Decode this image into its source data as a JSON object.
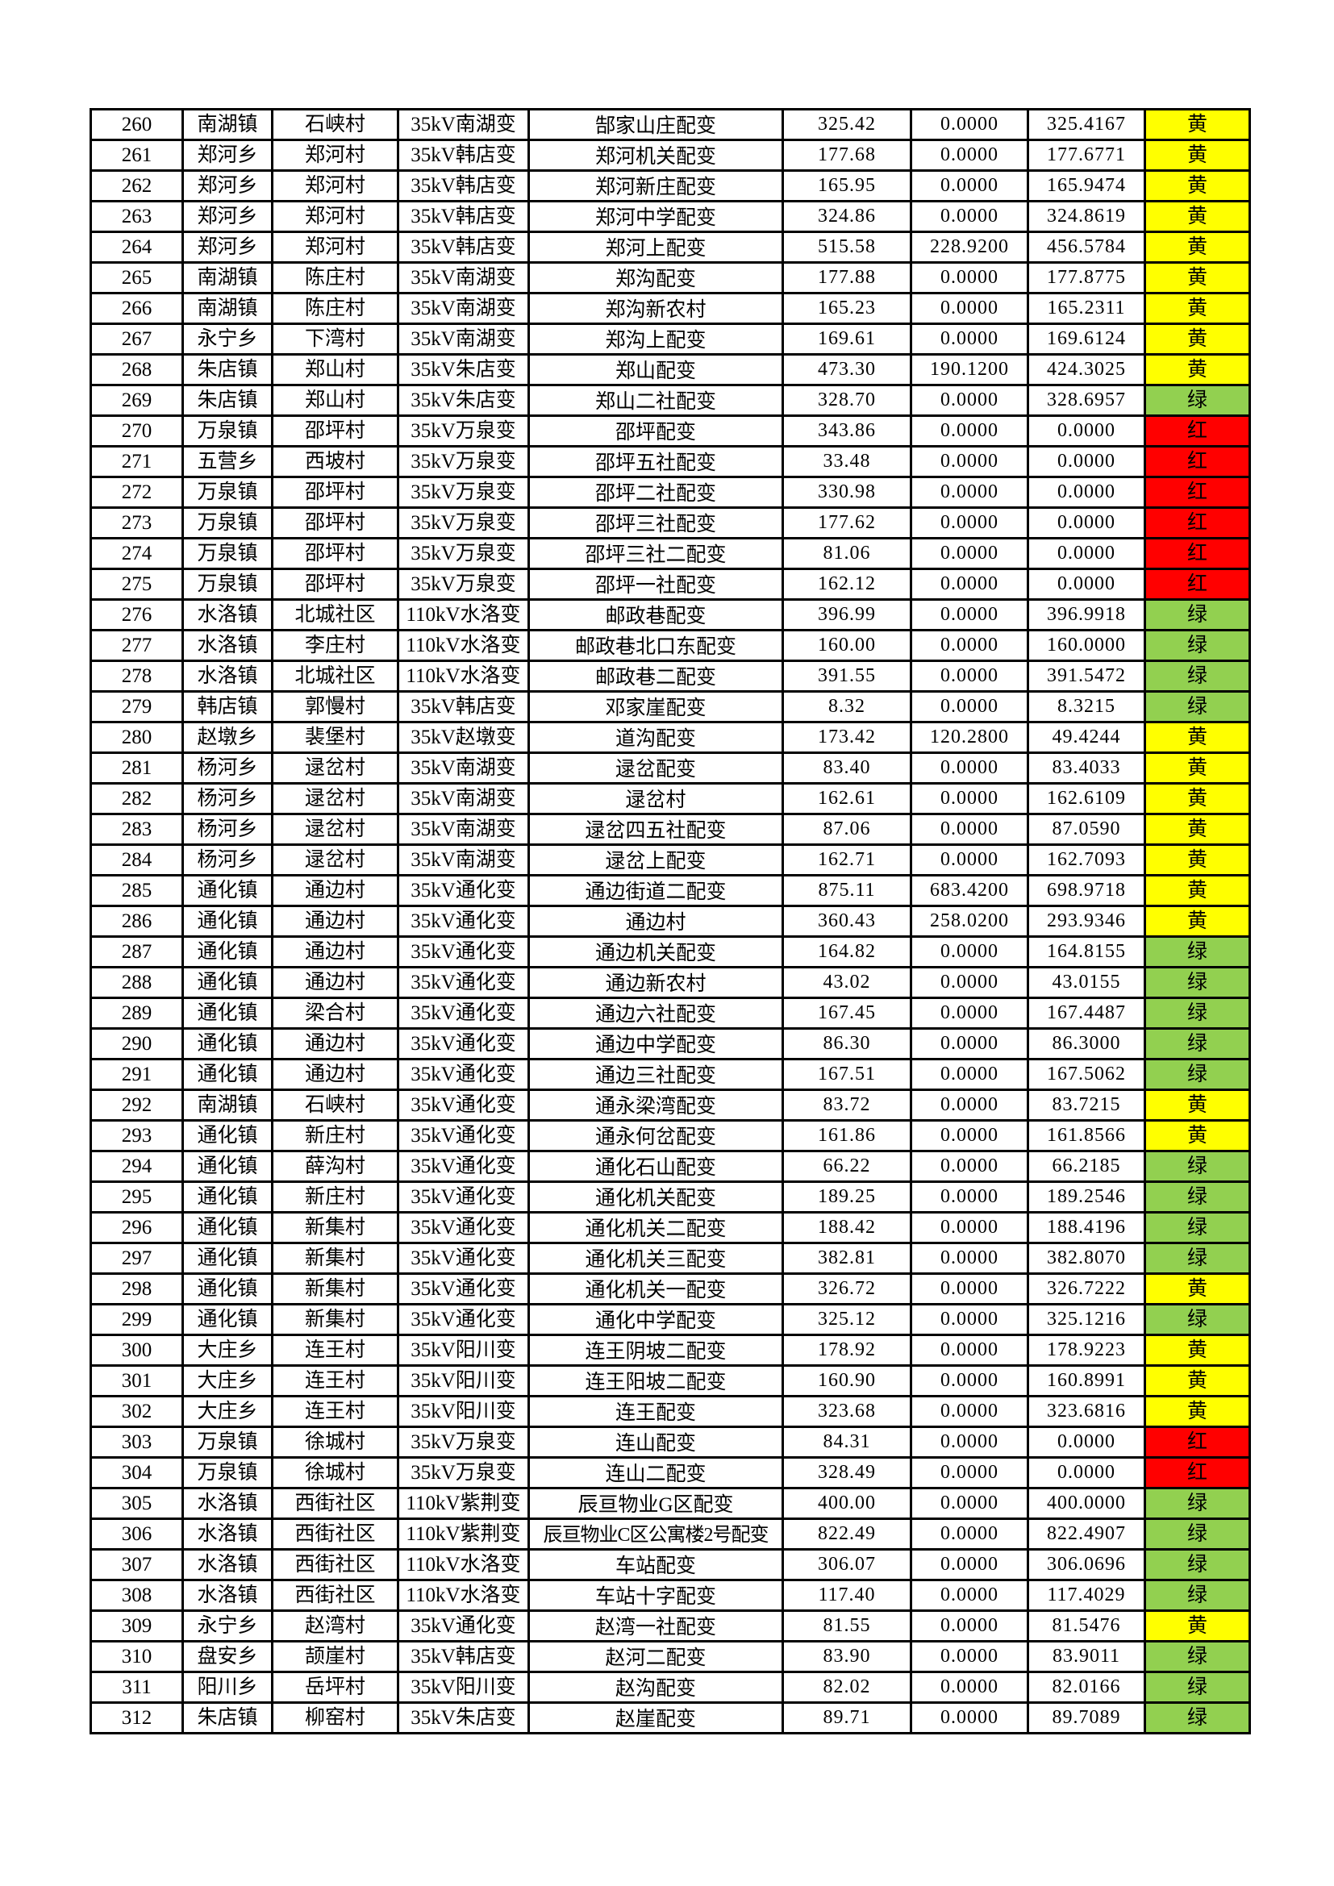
{
  "colors": {
    "黄": "#ffff00",
    "绿": "#92d050",
    "红": "#ff0000"
  },
  "rows": [
    [
      "260",
      "南湖镇",
      "石峡村",
      "35kV南湖变",
      "郜家山庄配变",
      "325.42",
      "0.0000",
      "325.4167",
      "黄"
    ],
    [
      "261",
      "郑河乡",
      "郑河村",
      "35kV韩店变",
      "郑河机关配变",
      "177.68",
      "0.0000",
      "177.6771",
      "黄"
    ],
    [
      "262",
      "郑河乡",
      "郑河村",
      "35kV韩店变",
      "郑河新庄配变",
      "165.95",
      "0.0000",
      "165.9474",
      "黄"
    ],
    [
      "263",
      "郑河乡",
      "郑河村",
      "35kV韩店变",
      "郑河中学配变",
      "324.86",
      "0.0000",
      "324.8619",
      "黄"
    ],
    [
      "264",
      "郑河乡",
      "郑河村",
      "35kV韩店变",
      "郑河上配变",
      "515.58",
      "228.9200",
      "456.5784",
      "黄"
    ],
    [
      "265",
      "南湖镇",
      "陈庄村",
      "35kV南湖变",
      "郑沟配变",
      "177.88",
      "0.0000",
      "177.8775",
      "黄"
    ],
    [
      "266",
      "南湖镇",
      "陈庄村",
      "35kV南湖变",
      "郑沟新农村",
      "165.23",
      "0.0000",
      "165.2311",
      "黄"
    ],
    [
      "267",
      "永宁乡",
      "下湾村",
      "35kV南湖变",
      "郑沟上配变",
      "169.61",
      "0.0000",
      "169.6124",
      "黄"
    ],
    [
      "268",
      "朱店镇",
      "郑山村",
      "35kV朱店变",
      "郑山配变",
      "473.30",
      "190.1200",
      "424.3025",
      "黄"
    ],
    [
      "269",
      "朱店镇",
      "郑山村",
      "35kV朱店变",
      "郑山二社配变",
      "328.70",
      "0.0000",
      "328.6957",
      "绿"
    ],
    [
      "270",
      "万泉镇",
      "邵坪村",
      "35kV万泉变",
      "邵坪配变",
      "343.86",
      "0.0000",
      "0.0000",
      "红"
    ],
    [
      "271",
      "五营乡",
      "西坡村",
      "35kV万泉变",
      "邵坪五社配变",
      "33.48",
      "0.0000",
      "0.0000",
      "红"
    ],
    [
      "272",
      "万泉镇",
      "邵坪村",
      "35kV万泉变",
      "邵坪二社配变",
      "330.98",
      "0.0000",
      "0.0000",
      "红"
    ],
    [
      "273",
      "万泉镇",
      "邵坪村",
      "35kV万泉变",
      "邵坪三社配变",
      "177.62",
      "0.0000",
      "0.0000",
      "红"
    ],
    [
      "274",
      "万泉镇",
      "邵坪村",
      "35kV万泉变",
      "邵坪三社二配变",
      "81.06",
      "0.0000",
      "0.0000",
      "红"
    ],
    [
      "275",
      "万泉镇",
      "邵坪村",
      "35kV万泉变",
      "邵坪一社配变",
      "162.12",
      "0.0000",
      "0.0000",
      "红"
    ],
    [
      "276",
      "水洛镇",
      "北城社区",
      "110kV水洛变",
      "邮政巷配变",
      "396.99",
      "0.0000",
      "396.9918",
      "绿"
    ],
    [
      "277",
      "水洛镇",
      "李庄村",
      "110kV水洛变",
      "邮政巷北口东配变",
      "160.00",
      "0.0000",
      "160.0000",
      "绿"
    ],
    [
      "278",
      "水洛镇",
      "北城社区",
      "110kV水洛变",
      "邮政巷二配变",
      "391.55",
      "0.0000",
      "391.5472",
      "绿"
    ],
    [
      "279",
      "韩店镇",
      "郭慢村",
      "35kV韩店变",
      "邓家崖配变",
      "8.32",
      "0.0000",
      "8.3215",
      "绿"
    ],
    [
      "280",
      "赵墩乡",
      "裴堡村",
      "35kV赵墩变",
      "道沟配变",
      "173.42",
      "120.2800",
      "49.4244",
      "黄"
    ],
    [
      "281",
      "杨河乡",
      "逯岔村",
      "35kV南湖变",
      "逯岔配变",
      "83.40",
      "0.0000",
      "83.4033",
      "黄"
    ],
    [
      "282",
      "杨河乡",
      "逯岔村",
      "35kV南湖变",
      "逯岔村",
      "162.61",
      "0.0000",
      "162.6109",
      "黄"
    ],
    [
      "283",
      "杨河乡",
      "逯岔村",
      "35kV南湖变",
      "逯岔四五社配变",
      "87.06",
      "0.0000",
      "87.0590",
      "黄"
    ],
    [
      "284",
      "杨河乡",
      "逯岔村",
      "35kV南湖变",
      "逯岔上配变",
      "162.71",
      "0.0000",
      "162.7093",
      "黄"
    ],
    [
      "285",
      "通化镇",
      "通边村",
      "35kV通化变",
      "通边街道二配变",
      "875.11",
      "683.4200",
      "698.9718",
      "黄"
    ],
    [
      "286",
      "通化镇",
      "通边村",
      "35kV通化变",
      "通边村",
      "360.43",
      "258.0200",
      "293.9346",
      "黄"
    ],
    [
      "287",
      "通化镇",
      "通边村",
      "35kV通化变",
      "通边机关配变",
      "164.82",
      "0.0000",
      "164.8155",
      "绿"
    ],
    [
      "288",
      "通化镇",
      "通边村",
      "35kV通化变",
      "通边新农村",
      "43.02",
      "0.0000",
      "43.0155",
      "绿"
    ],
    [
      "289",
      "通化镇",
      "梁合村",
      "35kV通化变",
      "通边六社配变",
      "167.45",
      "0.0000",
      "167.4487",
      "绿"
    ],
    [
      "290",
      "通化镇",
      "通边村",
      "35kV通化变",
      "通边中学配变",
      "86.30",
      "0.0000",
      "86.3000",
      "绿"
    ],
    [
      "291",
      "通化镇",
      "通边村",
      "35kV通化变",
      "通边三社配变",
      "167.51",
      "0.0000",
      "167.5062",
      "绿"
    ],
    [
      "292",
      "南湖镇",
      "石峡村",
      "35kV通化变",
      "通永梁湾配变",
      "83.72",
      "0.0000",
      "83.7215",
      "黄"
    ],
    [
      "293",
      "通化镇",
      "新庄村",
      "35kV通化变",
      "通永何岔配变",
      "161.86",
      "0.0000",
      "161.8566",
      "黄"
    ],
    [
      "294",
      "通化镇",
      "薛沟村",
      "35kV通化变",
      "通化石山配变",
      "66.22",
      "0.0000",
      "66.2185",
      "绿"
    ],
    [
      "295",
      "通化镇",
      "新庄村",
      "35kV通化变",
      "通化机关配变",
      "189.25",
      "0.0000",
      "189.2546",
      "绿"
    ],
    [
      "296",
      "通化镇",
      "新集村",
      "35kV通化变",
      "通化机关二配变",
      "188.42",
      "0.0000",
      "188.4196",
      "绿"
    ],
    [
      "297",
      "通化镇",
      "新集村",
      "35kV通化变",
      "通化机关三配变",
      "382.81",
      "0.0000",
      "382.8070",
      "绿"
    ],
    [
      "298",
      "通化镇",
      "新集村",
      "35kV通化变",
      "通化机关一配变",
      "326.72",
      "0.0000",
      "326.7222",
      "黄"
    ],
    [
      "299",
      "通化镇",
      "新集村",
      "35kV通化变",
      "通化中学配变",
      "325.12",
      "0.0000",
      "325.1216",
      "绿"
    ],
    [
      "300",
      "大庄乡",
      "连王村",
      "35kV阳川变",
      "连王阴坡二配变",
      "178.92",
      "0.0000",
      "178.9223",
      "黄"
    ],
    [
      "301",
      "大庄乡",
      "连王村",
      "35kV阳川变",
      "连王阳坡二配变",
      "160.90",
      "0.0000",
      "160.8991",
      "黄"
    ],
    [
      "302",
      "大庄乡",
      "连王村",
      "35kV阳川变",
      "连王配变",
      "323.68",
      "0.0000",
      "323.6816",
      "黄"
    ],
    [
      "303",
      "万泉镇",
      "徐城村",
      "35kV万泉变",
      "连山配变",
      "84.31",
      "0.0000",
      "0.0000",
      "红"
    ],
    [
      "304",
      "万泉镇",
      "徐城村",
      "35kV万泉变",
      "连山二配变",
      "328.49",
      "0.0000",
      "0.0000",
      "红"
    ],
    [
      "305",
      "水洛镇",
      "西街社区",
      "110kV紫荆变",
      "辰亘物业G区配变",
      "400.00",
      "0.0000",
      "400.0000",
      "绿"
    ],
    [
      "306",
      "水洛镇",
      "西街社区",
      "110kV紫荆变",
      "辰亘物业C区公寓楼2号配变",
      "822.49",
      "0.0000",
      "822.4907",
      "绿"
    ],
    [
      "307",
      "水洛镇",
      "西街社区",
      "110kV水洛变",
      "车站配变",
      "306.07",
      "0.0000",
      "306.0696",
      "绿"
    ],
    [
      "308",
      "水洛镇",
      "西街社区",
      "110kV水洛变",
      "车站十字配变",
      "117.40",
      "0.0000",
      "117.4029",
      "绿"
    ],
    [
      "309",
      "永宁乡",
      "赵湾村",
      "35kV通化变",
      "赵湾一社配变",
      "81.55",
      "0.0000",
      "81.5476",
      "黄"
    ],
    [
      "310",
      "盘安乡",
      "颉崖村",
      "35kV韩店变",
      "赵河二配变",
      "83.90",
      "0.0000",
      "83.9011",
      "绿"
    ],
    [
      "311",
      "阳川乡",
      "岳坪村",
      "35kV阳川变",
      "赵沟配变",
      "82.02",
      "0.0000",
      "82.0166",
      "绿"
    ],
    [
      "312",
      "朱店镇",
      "柳窑村",
      "35kV朱店变",
      "赵崖配变",
      "89.71",
      "0.0000",
      "89.7089",
      "绿"
    ]
  ]
}
